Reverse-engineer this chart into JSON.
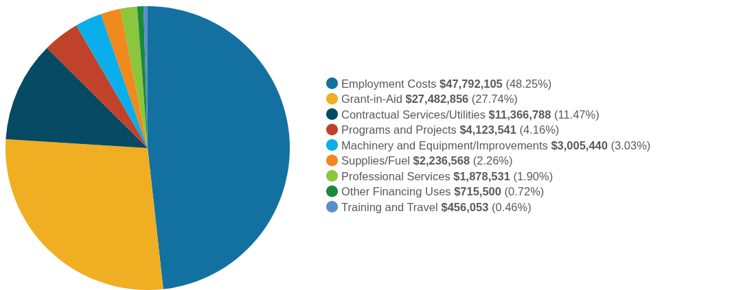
{
  "chart_data": {
    "type": "pie",
    "categories": [
      "Employment Costs",
      "Grant-in-Aid",
      "Contractual Services/Utilities",
      "Programs and Projects",
      "Machinery and Equipment/Improvements",
      "Supplies/Fuel",
      "Professional Services",
      "Other Financing Uses",
      "Training and Travel"
    ],
    "values": [
      47792105,
      27482856,
      11366788,
      4123541,
      3005440,
      2236568,
      1878531,
      715500,
      456053
    ],
    "colors": [
      "#1271a1",
      "#f0ae22",
      "#064a63",
      "#c0422a",
      "#0aaeea",
      "#f0891e",
      "#8cc63e",
      "#1a8a3e",
      "#5b8ec9"
    ],
    "value_labels": [
      "$47,792,105 (48.25%)",
      "$27,482,856 (27.74%)",
      "$11,366,788 (11.47%)",
      "$4,123,541 (4.16%)",
      "$3,005,440 (3.03%)",
      "$2,236,568 (2.26%)",
      "$1,878,531 (1.90%)",
      "$715,500 (0.72%)",
      "$456,053 (0.46%)"
    ],
    "legend": "right"
  }
}
